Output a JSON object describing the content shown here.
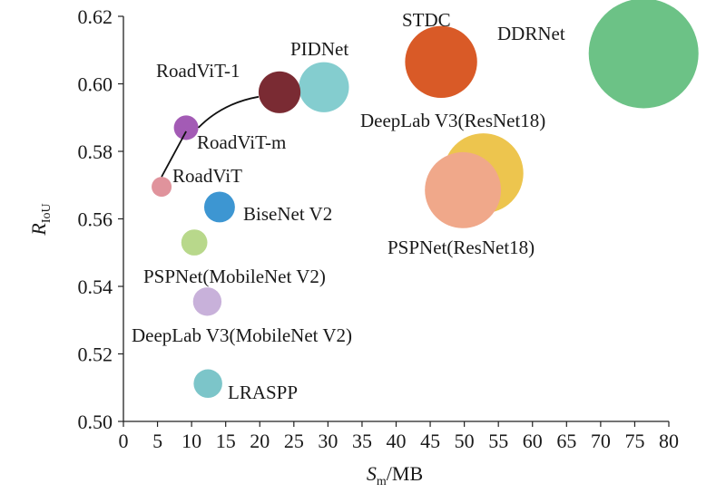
{
  "chart_data": {
    "type": "scatter",
    "bubble": true,
    "xlabel": {
      "main": "S",
      "sub": "m",
      "suffix": "/MB"
    },
    "ylabel": {
      "main": "R",
      "sub": "IoU"
    },
    "xlim": [
      0,
      80
    ],
    "ylim": [
      0.5,
      0.62
    ],
    "xticks": [
      "0",
      "5",
      "10",
      "15",
      "20",
      "25",
      "30",
      "35",
      "40",
      "45",
      "50",
      "55",
      "60",
      "65",
      "70",
      "75",
      "80"
    ],
    "yticks": [
      "0.50",
      "0.52",
      "0.54",
      "0.56",
      "0.58",
      "0.60",
      "0.62"
    ],
    "grid": false,
    "points": [
      {
        "label": "RoadViT",
        "x": 5.6,
        "y": 0.5695,
        "size": 5.6,
        "color": "#e0939c"
      },
      {
        "label": "RoadViT-m",
        "x": 9.2,
        "y": 0.587,
        "size": 9.2,
        "color": "#a35bb5"
      },
      {
        "label": "RoadViT-1",
        "x": 22.9,
        "y": 0.5975,
        "size": 22.9,
        "color": "#7a2b33"
      },
      {
        "label": "PIDNet",
        "x": 29.4,
        "y": 0.599,
        "size": 29.4,
        "color": "#84cdcf"
      },
      {
        "label": "STDC",
        "x": 46.6,
        "y": 0.6065,
        "size": 46.6,
        "color": "#d95a27"
      },
      {
        "label": "DDRNet",
        "x": 76.3,
        "y": 0.609,
        "size": 76.3,
        "color": "#6cc286"
      },
      {
        "label": "DeepLab V3(ResNet18)",
        "x": 52.8,
        "y": 0.5735,
        "size": 52.8,
        "color": "#edc54e"
      },
      {
        "label": "PSPNet(ResNet18)",
        "x": 49.8,
        "y": 0.5685,
        "size": 49.8,
        "color": "#f0a88a"
      },
      {
        "label": "BiseNet V2",
        "x": 14.1,
        "y": 0.5635,
        "size": 14.1,
        "color": "#3d96d2"
      },
      {
        "label": "PSPNet(MobileNet V2)",
        "x": 10.4,
        "y": 0.553,
        "size": 10.4,
        "color": "#b8d88b"
      },
      {
        "label": "DeepLab V3(MobileNet V2)",
        "x": 12.3,
        "y": 0.5355,
        "size": 12.3,
        "color": "#c8b1da"
      },
      {
        "label": "LRASPP",
        "x": 12.4,
        "y": 0.5112,
        "size": 12.4,
        "color": "#7cc5c9"
      }
    ],
    "connected": [
      "RoadViT",
      "RoadViT-m",
      "RoadViT-1"
    ]
  }
}
